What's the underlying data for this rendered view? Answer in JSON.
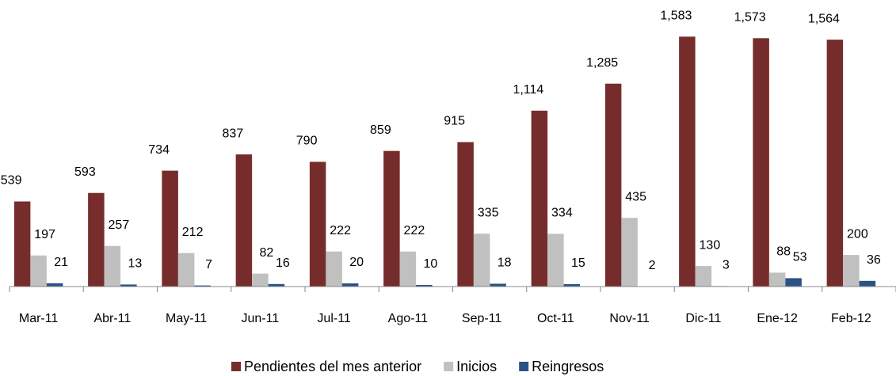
{
  "chart_data": {
    "type": "bar",
    "categories": [
      "Mar-11",
      "Abr-11",
      "May-11",
      "Jun-11",
      "Jul-11",
      "Ago-11",
      "Sep-11",
      "Oct-11",
      "Nov-11",
      "Dic-11",
      "Ene-12",
      "Feb-12"
    ],
    "series": [
      {
        "name": "Pendientes del mes anterior",
        "color": "#772c2c",
        "values": [
          539,
          593,
          734,
          837,
          790,
          859,
          915,
          1114,
          1285,
          1583,
          1573,
          1564
        ],
        "value_labels": [
          "539",
          "593",
          "734",
          "837",
          "790",
          "859",
          "915",
          "1,114",
          "1,285",
          "1,583",
          "1,573",
          "1,564"
        ]
      },
      {
        "name": "Inicios",
        "color": "#c0c0c0",
        "values": [
          197,
          257,
          212,
          82,
          222,
          222,
          335,
          334,
          435,
          130,
          88,
          200
        ]
      },
      {
        "name": "Reingresos",
        "color": "#2a5287",
        "values": [
          21,
          13,
          7,
          16,
          20,
          10,
          18,
          15,
          2,
          3,
          53,
          36
        ]
      }
    ],
    "ylim": [
      0,
      1800
    ],
    "legend": "bottom"
  }
}
